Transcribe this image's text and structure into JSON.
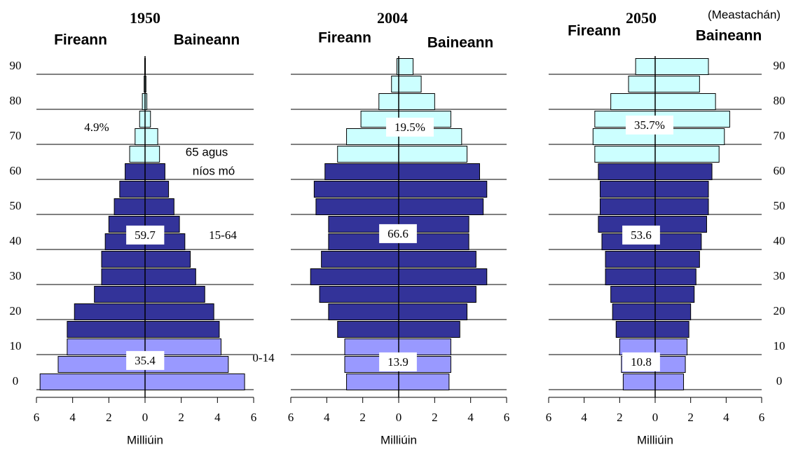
{
  "chart_data": [
    {
      "type": "pyramid",
      "title": "1950",
      "left_label": "Fireann",
      "right_label": "Baineann",
      "xlabel": "Milliúin",
      "categories": [
        "0",
        null,
        "10",
        null,
        "20",
        null,
        "30",
        null,
        "40",
        null,
        "50",
        null,
        "60",
        null,
        "70",
        null,
        "80",
        null,
        "90"
      ],
      "bar_colors": [
        "#9999ff",
        "#9999ff",
        "#9999ff",
        "#333399",
        "#333399",
        "#333399",
        "#333399",
        "#333399",
        "#333399",
        "#333399",
        "#333399",
        "#333399",
        "#333399",
        "#ccffff",
        "#ccffff",
        "#ccffff",
        "#ccffff",
        "#ccffff",
        "#ccffff"
      ],
      "series": [
        {
          "name": "Fireann",
          "values": [
            5.8,
            4.8,
            4.3,
            4.3,
            3.9,
            2.8,
            2.4,
            2.4,
            2.2,
            2.0,
            1.7,
            1.4,
            1.1,
            0.85,
            0.55,
            0.3,
            0.15,
            0.05,
            0.02
          ]
        },
        {
          "name": "Baineann",
          "values": [
            5.5,
            4.6,
            4.2,
            4.1,
            3.8,
            3.3,
            2.8,
            2.5,
            2.2,
            1.9,
            1.6,
            1.3,
            1.1,
            0.8,
            0.7,
            0.3,
            0.1,
            0.05,
            0.02
          ]
        }
      ],
      "xlim": [
        -6,
        6
      ],
      "xticks": [
        {
          "value": -6,
          "label": "6"
        },
        {
          "value": -4,
          "label": "4"
        },
        {
          "value": -2,
          "label": "2"
        },
        0,
        2,
        4,
        6
      ],
      "grid": true,
      "category_axis_side": "left",
      "annotations": [
        "4.9%",
        "65 agus",
        "níos mó",
        "59.7",
        "15-64",
        "35.4",
        "0-14"
      ]
    },
    {
      "type": "pyramid",
      "title": "2004",
      "left_label": "Fireann",
      "right_label": "Baineann",
      "xlabel": "Milliúin",
      "categories": [
        null,
        null,
        null,
        null,
        null,
        null,
        null,
        null,
        null,
        null,
        null,
        null,
        null,
        null,
        null,
        null,
        null,
        null,
        null
      ],
      "bar_colors": [
        "#9999ff",
        "#9999ff",
        "#9999ff",
        "#333399",
        "#333399",
        "#333399",
        "#333399",
        "#333399",
        "#333399",
        "#333399",
        "#333399",
        "#333399",
        "#333399",
        "#ccffff",
        "#ccffff",
        "#ccffff",
        "#ccffff",
        "#ccffff",
        "#ccffff"
      ],
      "series": [
        {
          "name": "Fireann",
          "values": [
            2.9,
            3.0,
            3.0,
            3.4,
            3.9,
            4.4,
            4.9,
            4.3,
            3.9,
            3.9,
            4.6,
            4.7,
            4.1,
            3.4,
            2.9,
            2.1,
            1.1,
            0.4,
            0.1
          ]
        },
        {
          "name": "Baineann",
          "values": [
            2.8,
            2.9,
            2.9,
            3.4,
            3.8,
            4.3,
            4.9,
            4.3,
            3.9,
            3.9,
            4.7,
            4.9,
            4.5,
            3.8,
            3.5,
            2.9,
            2.0,
            1.25,
            0.8
          ]
        }
      ],
      "xlim": [
        -6,
        6
      ],
      "xticks": [
        {
          "value": -6,
          "label": "6"
        },
        {
          "value": -4,
          "label": "4"
        },
        {
          "value": -2,
          "label": "2"
        },
        0,
        2,
        4,
        6
      ],
      "grid": true,
      "annotations": [
        "19.5%",
        "66.6",
        "13.9"
      ]
    },
    {
      "type": "pyramid",
      "title": "2050",
      "subtitle": "(Meastachán)",
      "left_label": "Fireann",
      "right_label": "Baineann",
      "xlabel": "Milliúin",
      "categories": [
        "0",
        null,
        "10",
        null,
        "20",
        null,
        "30",
        null,
        "40",
        null,
        "50",
        null,
        "60",
        null,
        "70",
        null,
        "80",
        null,
        "90"
      ],
      "bar_colors": [
        "#9999ff",
        "#9999ff",
        "#9999ff",
        "#333399",
        "#333399",
        "#333399",
        "#333399",
        "#333399",
        "#333399",
        "#333399",
        "#333399",
        "#333399",
        "#333399",
        "#ccffff",
        "#ccffff",
        "#ccffff",
        "#ccffff",
        "#ccffff",
        "#ccffff"
      ],
      "series": [
        {
          "name": "Fireann",
          "values": [
            1.8,
            1.9,
            2.0,
            2.2,
            2.4,
            2.5,
            2.8,
            2.8,
            3.0,
            3.2,
            3.1,
            3.1,
            3.2,
            3.4,
            3.5,
            3.4,
            2.5,
            1.5,
            1.1
          ]
        },
        {
          "name": "Baineann",
          "values": [
            1.6,
            1.7,
            1.8,
            1.9,
            2.0,
            2.2,
            2.3,
            2.5,
            2.6,
            2.9,
            3.0,
            3.0,
            3.2,
            3.6,
            3.9,
            4.2,
            3.4,
            2.5,
            3.0
          ]
        }
      ],
      "xlim": [
        -6,
        6
      ],
      "xticks": [
        {
          "value": -6,
          "label": "6"
        },
        {
          "value": -4,
          "label": "4"
        },
        {
          "value": -2,
          "label": "2"
        },
        0,
        2,
        4,
        6
      ],
      "grid": true,
      "category_axis_side": "right",
      "annotations": [
        "35.7%",
        "53.6",
        "10.8"
      ]
    }
  ]
}
